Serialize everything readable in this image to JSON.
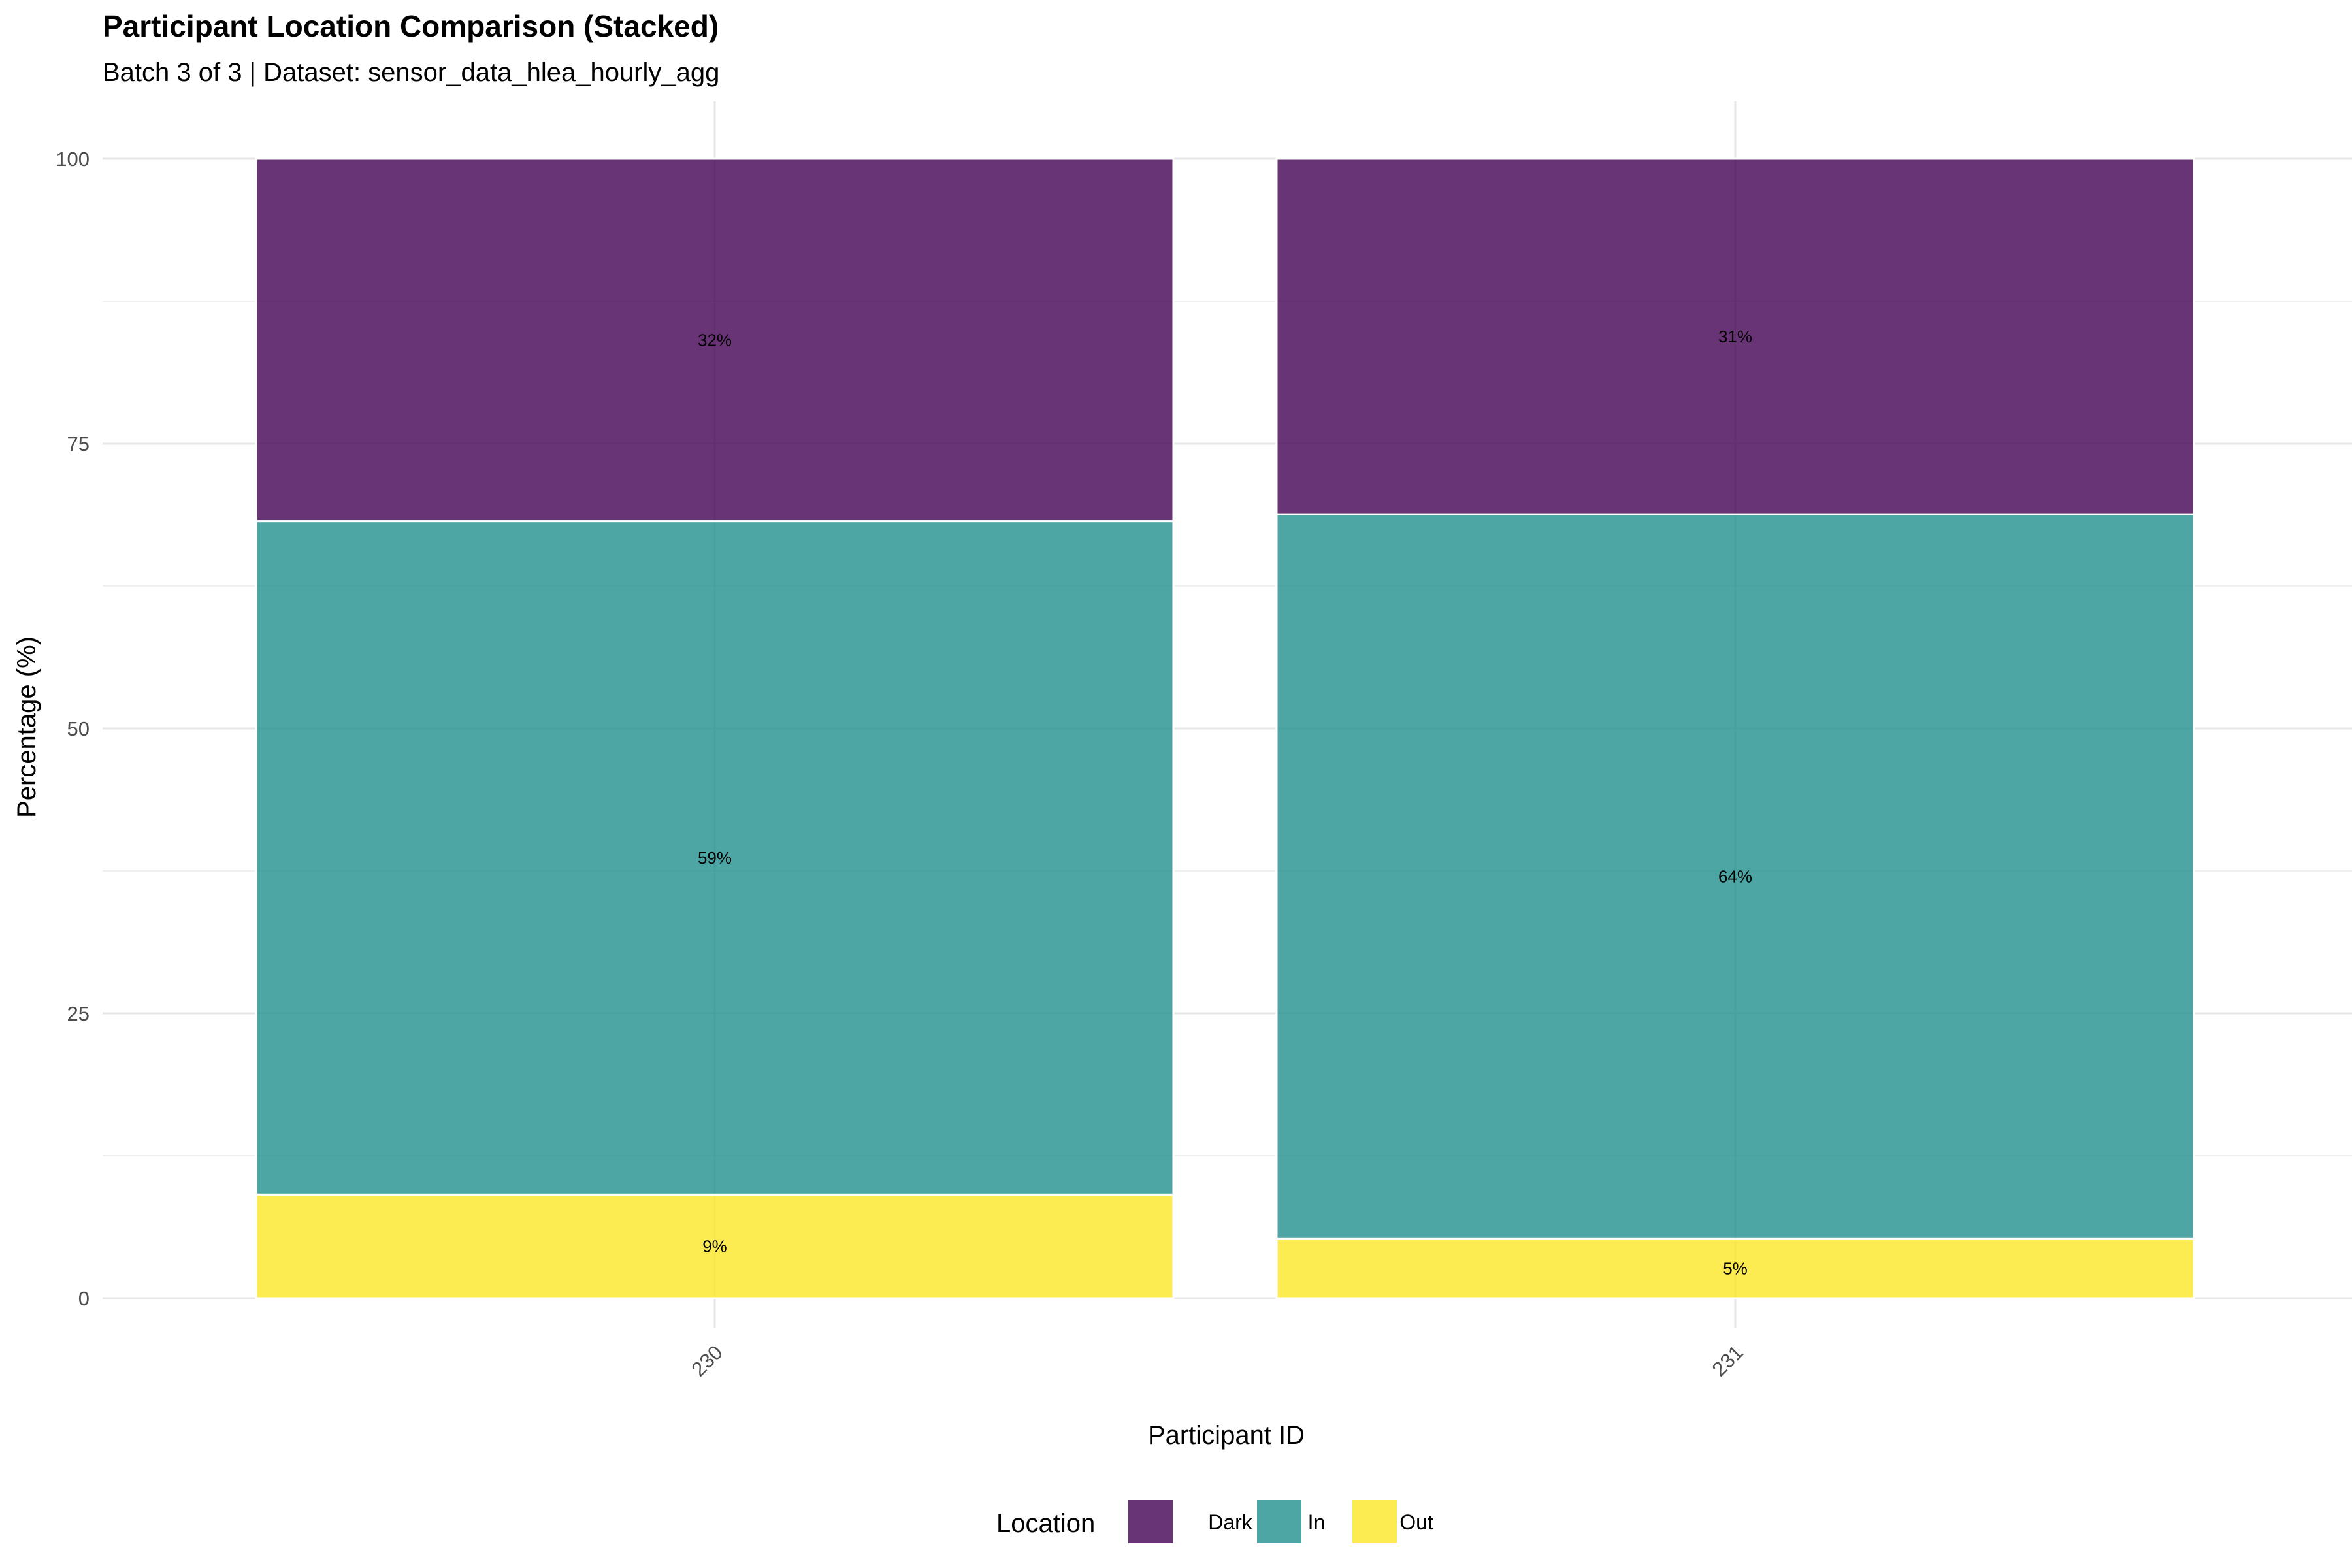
{
  "chart_data": {
    "type": "bar",
    "stacked": true,
    "title": "Participant Location Comparison (Stacked)",
    "subtitle": "Batch 3 of 3 | Dataset: sensor_data_hlea_hourly_agg",
    "xlabel": "Participant ID",
    "ylabel": "Percentage (%)",
    "ylim": [
      0,
      100
    ],
    "yticks": [
      0,
      25,
      50,
      75,
      100
    ],
    "grid": true,
    "legend": {
      "title": "Location",
      "position": "bottom"
    },
    "categories": [
      "230",
      "231"
    ],
    "series": [
      {
        "name": "Dark",
        "color": "#440154",
        "values": [
          31.8,
          31.2
        ],
        "labels": [
          "32%",
          "31%"
        ]
      },
      {
        "name": "In",
        "color": "#21908C",
        "values": [
          59.1,
          63.6
        ],
        "labels": [
          "59%",
          "64%"
        ]
      },
      {
        "name": "Out",
        "color": "#FDE725",
        "values": [
          9.1,
          5.2
        ],
        "labels": [
          "9%",
          "5%"
        ]
      }
    ],
    "stack_order_bottom_to_top": [
      "Out",
      "In",
      "Dark"
    ]
  }
}
